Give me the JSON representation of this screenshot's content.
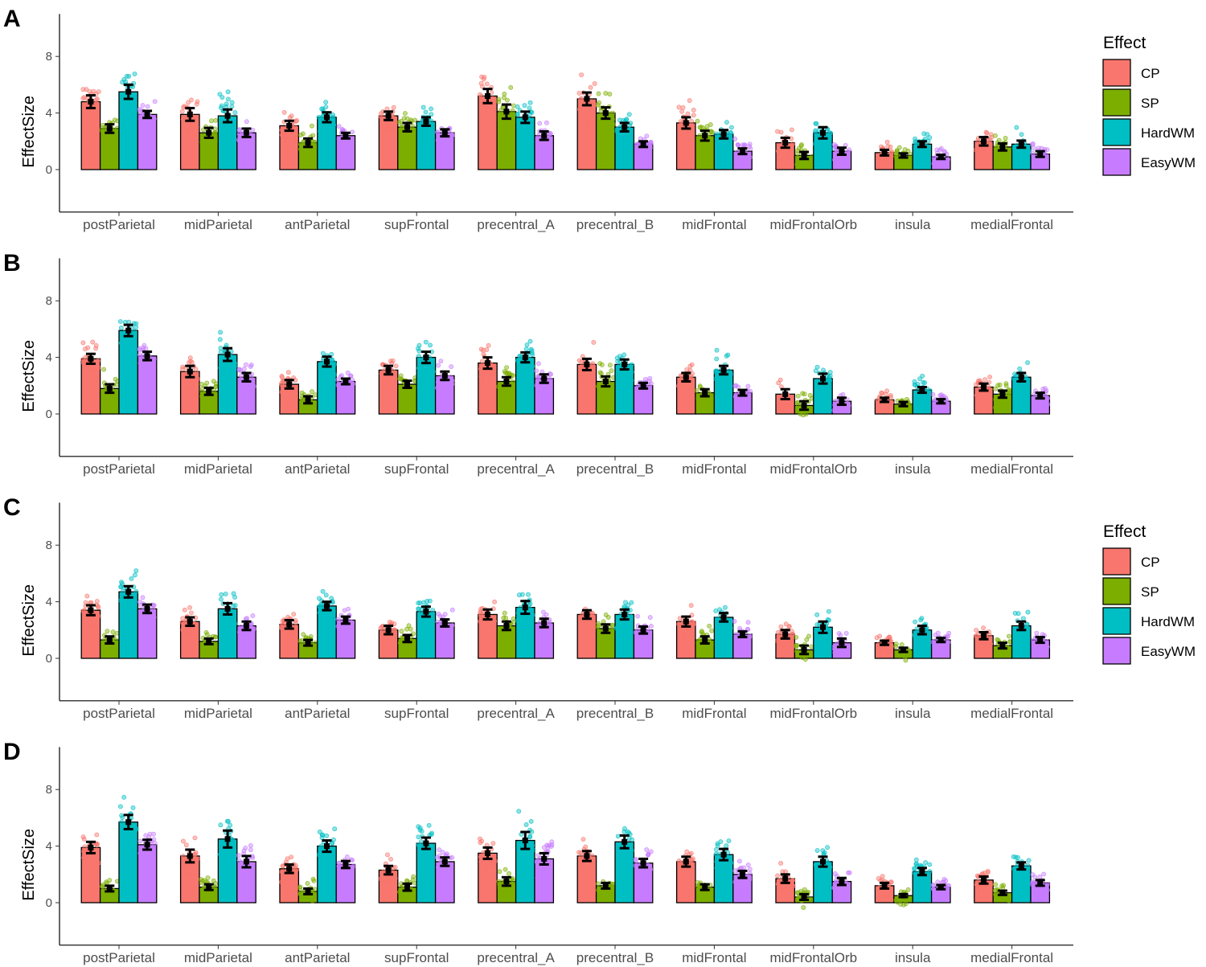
{
  "chart_data": {
    "type": "bar",
    "ylabel": "EffectSize",
    "y_ticks": [
      "0",
      "4",
      "8"
    ],
    "ylim": [
      -3,
      11
    ],
    "categories": [
      "postParietal",
      "midParietal",
      "antParietal",
      "supFrontal",
      "precentral_A",
      "precentral_B",
      "midFrontal",
      "midFrontalOrb",
      "insula",
      "medialFrontal"
    ],
    "legend": {
      "title": "Effect",
      "entries": [
        "CP",
        "SP",
        "HardWM",
        "EasyWM"
      ]
    },
    "colors": {
      "CP": "#F8766D",
      "SP": "#7CAE00",
      "HardWM": "#00BFC4",
      "EasyWM": "#C77CFF"
    },
    "panels": [
      {
        "label": "A",
        "series": [
          {
            "name": "CP",
            "values": [
              4.8,
              3.9,
              3.1,
              3.8,
              5.2,
              5.0,
              3.3,
              1.9,
              1.2,
              2.0
            ],
            "sem": [
              0.45,
              0.45,
              0.35,
              0.3,
              0.5,
              0.45,
              0.4,
              0.35,
              0.2,
              0.3
            ]
          },
          {
            "name": "SP",
            "values": [
              2.9,
              2.6,
              1.9,
              3.0,
              4.1,
              4.0,
              2.4,
              1.0,
              1.0,
              1.6
            ],
            "sem": [
              0.3,
              0.35,
              0.3,
              0.3,
              0.5,
              0.4,
              0.35,
              0.25,
              0.15,
              0.25
            ]
          },
          {
            "name": "HardWM",
            "values": [
              5.5,
              3.8,
              3.7,
              3.4,
              3.7,
              3.0,
              2.5,
              2.6,
              1.8,
              1.8
            ],
            "sem": [
              0.5,
              0.45,
              0.35,
              0.3,
              0.4,
              0.3,
              0.3,
              0.4,
              0.2,
              0.25
            ]
          },
          {
            "name": "EasyWM",
            "values": [
              3.9,
              2.6,
              2.4,
              2.6,
              2.4,
              1.8,
              1.3,
              1.3,
              0.9,
              1.1
            ],
            "sem": [
              0.25,
              0.3,
              0.2,
              0.25,
              0.3,
              0.2,
              0.2,
              0.25,
              0.15,
              0.2
            ]
          }
        ]
      },
      {
        "label": "B",
        "series": [
          {
            "name": "CP",
            "values": [
              3.9,
              3.0,
              2.1,
              3.1,
              3.6,
              3.5,
              2.6,
              1.4,
              1.0,
              1.9
            ],
            "sem": [
              0.35,
              0.4,
              0.3,
              0.3,
              0.4,
              0.4,
              0.3,
              0.35,
              0.15,
              0.25
            ]
          },
          {
            "name": "SP",
            "values": [
              1.8,
              1.6,
              1.0,
              2.1,
              2.3,
              2.3,
              1.5,
              0.6,
              0.7,
              1.4
            ],
            "sem": [
              0.3,
              0.25,
              0.25,
              0.25,
              0.3,
              0.35,
              0.25,
              0.3,
              0.15,
              0.25
            ]
          },
          {
            "name": "HardWM",
            "values": [
              5.9,
              4.2,
              3.7,
              4.0,
              4.0,
              3.5,
              3.1,
              2.5,
              1.7,
              2.6
            ],
            "sem": [
              0.4,
              0.45,
              0.35,
              0.4,
              0.35,
              0.35,
              0.3,
              0.35,
              0.2,
              0.3
            ]
          },
          {
            "name": "EasyWM",
            "values": [
              4.1,
              2.6,
              2.3,
              2.7,
              2.5,
              2.0,
              1.5,
              0.9,
              0.9,
              1.3
            ],
            "sem": [
              0.3,
              0.3,
              0.2,
              0.3,
              0.3,
              0.2,
              0.2,
              0.25,
              0.15,
              0.2
            ]
          }
        ]
      },
      {
        "label": "C",
        "series": [
          {
            "name": "CP",
            "values": [
              3.4,
              2.6,
              2.4,
              2.0,
              3.1,
              3.1,
              2.6,
              1.7,
              1.1,
              1.6
            ],
            "sem": [
              0.35,
              0.3,
              0.3,
              0.3,
              0.35,
              0.3,
              0.35,
              0.3,
              0.15,
              0.25
            ]
          },
          {
            "name": "SP",
            "values": [
              1.3,
              1.2,
              1.1,
              1.4,
              2.3,
              2.1,
              1.3,
              0.6,
              0.6,
              0.9
            ],
            "sem": [
              0.25,
              0.2,
              0.2,
              0.25,
              0.3,
              0.3,
              0.25,
              0.3,
              0.15,
              0.2
            ]
          },
          {
            "name": "HardWM",
            "values": [
              4.7,
              3.5,
              3.7,
              3.3,
              3.6,
              3.1,
              2.9,
              2.2,
              2.0,
              2.3
            ],
            "sem": [
              0.4,
              0.4,
              0.3,
              0.35,
              0.45,
              0.35,
              0.3,
              0.4,
              0.3,
              0.3
            ]
          },
          {
            "name": "EasyWM",
            "values": [
              3.5,
              2.3,
              2.7,
              2.5,
              2.5,
              2.0,
              1.7,
              1.1,
              1.3,
              1.3
            ],
            "sem": [
              0.3,
              0.3,
              0.25,
              0.25,
              0.3,
              0.25,
              0.2,
              0.3,
              0.15,
              0.2
            ]
          }
        ]
      },
      {
        "label": "D",
        "series": [
          {
            "name": "CP",
            "values": [
              3.9,
              3.3,
              2.4,
              2.3,
              3.5,
              3.3,
              2.9,
              1.7,
              1.2,
              1.6
            ],
            "sem": [
              0.4,
              0.45,
              0.3,
              0.3,
              0.4,
              0.35,
              0.35,
              0.3,
              0.2,
              0.25
            ]
          },
          {
            "name": "SP",
            "values": [
              1.0,
              1.1,
              0.8,
              1.1,
              1.5,
              1.2,
              1.1,
              0.4,
              0.5,
              0.7
            ],
            "sem": [
              0.2,
              0.2,
              0.2,
              0.25,
              0.3,
              0.2,
              0.2,
              0.2,
              0.1,
              0.15
            ]
          },
          {
            "name": "HardWM",
            "values": [
              5.7,
              4.5,
              4.0,
              4.2,
              4.4,
              4.3,
              3.4,
              2.9,
              2.2,
              2.6
            ],
            "sem": [
              0.5,
              0.6,
              0.4,
              0.4,
              0.6,
              0.45,
              0.4,
              0.35,
              0.25,
              0.25
            ]
          },
          {
            "name": "EasyWM",
            "values": [
              4.1,
              2.9,
              2.7,
              2.9,
              3.1,
              2.8,
              2.0,
              1.5,
              1.1,
              1.4
            ],
            "sem": [
              0.35,
              0.4,
              0.25,
              0.3,
              0.4,
              0.3,
              0.25,
              0.25,
              0.15,
              0.2
            ]
          }
        ]
      }
    ]
  }
}
